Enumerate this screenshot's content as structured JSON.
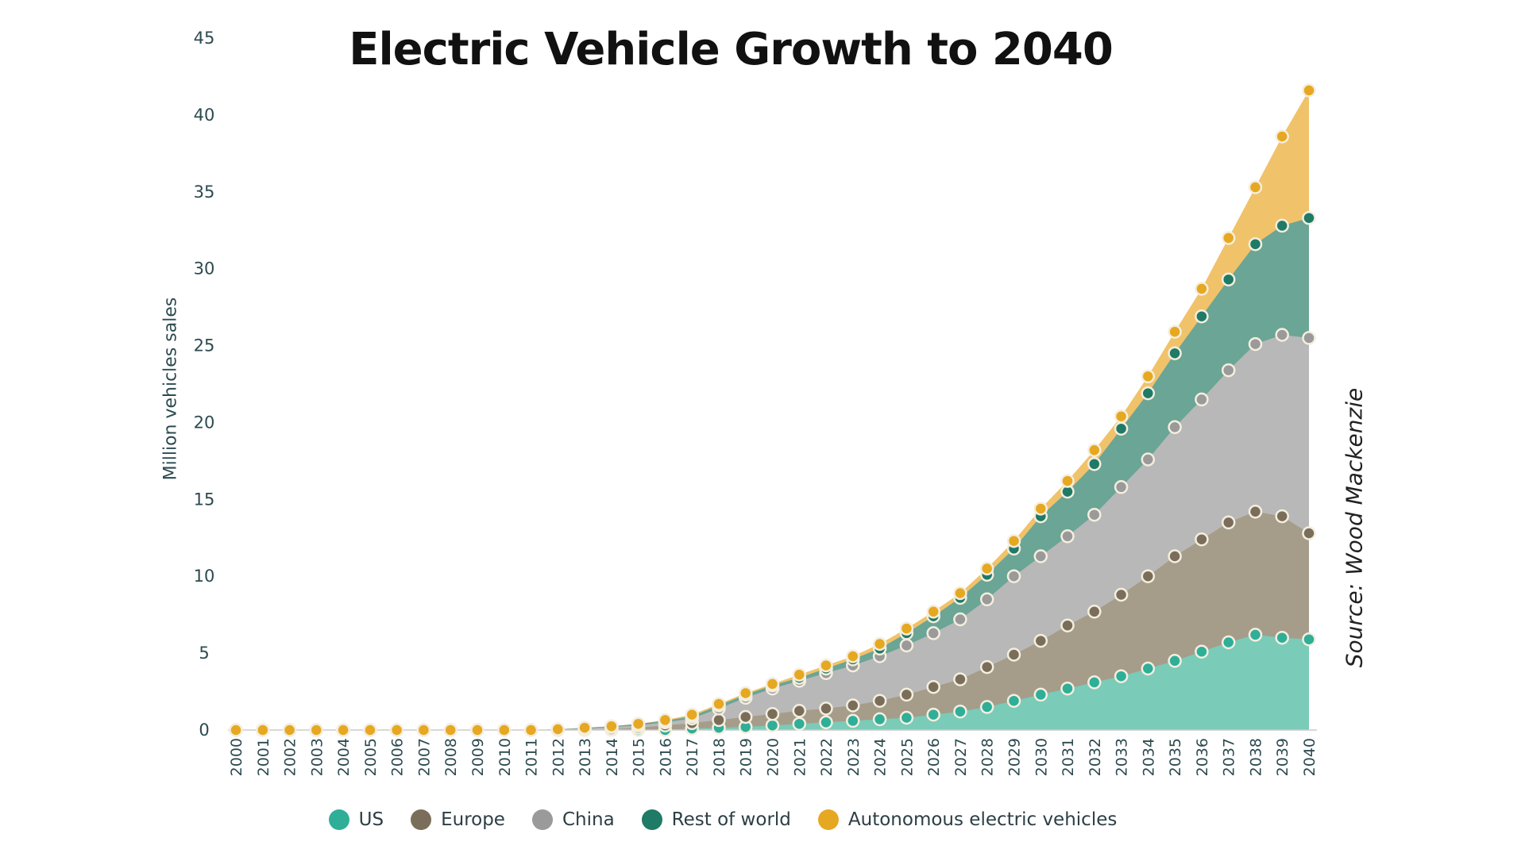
{
  "chart_data": {
    "type": "area",
    "stacked": true,
    "title": "Electric Vehicle Growth to 2040",
    "ylabel": "Million vehicles sales",
    "xlabel": "",
    "ylim": [
      0,
      45
    ],
    "yticks": [
      "0",
      "5",
      "10",
      "15",
      "20",
      "25",
      "30",
      "35",
      "40",
      "45"
    ],
    "x": [
      "2000",
      "2001",
      "2002",
      "2003",
      "2004",
      "2005",
      "2006",
      "2007",
      "2008",
      "2009",
      "2010",
      "2011",
      "2012",
      "2013",
      "2014",
      "2015",
      "2016",
      "2017",
      "2018",
      "2019",
      "2020",
      "2021",
      "2022",
      "2023",
      "2024",
      "2025",
      "2026",
      "2027",
      "2028",
      "2029",
      "2030",
      "2031",
      "2032",
      "2033",
      "2034",
      "2035",
      "2036",
      "2037",
      "2038",
      "2039",
      "2040"
    ],
    "cumulative": true,
    "series": [
      {
        "name": "US",
        "color": "#2fae98",
        "area_color": "#7acbb8",
        "values": [
          0,
          0,
          0,
          0,
          0,
          0,
          0,
          0,
          0,
          0,
          0,
          0,
          0,
          0,
          0,
          0,
          0,
          0.1,
          0.15,
          0.2,
          0.3,
          0.4,
          0.5,
          0.6,
          0.7,
          0.8,
          1.0,
          1.2,
          1.5,
          1.9,
          2.3,
          2.7,
          3.1,
          3.5,
          4.0,
          4.5,
          5.1,
          5.7,
          6.2,
          6.0,
          5.9
        ]
      },
      {
        "name": "Europe",
        "color": "#7a6e5a",
        "area_color": "#a69c8a",
        "values": [
          0,
          0,
          0,
          0,
          0,
          0,
          0,
          0,
          0,
          0,
          0,
          0,
          0,
          0,
          0.05,
          0.15,
          0.3,
          0.45,
          0.65,
          0.85,
          1.05,
          1.25,
          1.4,
          1.6,
          1.9,
          2.3,
          2.8,
          3.3,
          4.1,
          4.9,
          5.8,
          6.8,
          7.7,
          8.8,
          10.0,
          11.3,
          12.4,
          13.5,
          14.2,
          13.9,
          12.8
        ]
      },
      {
        "name": "China",
        "color": "#9a9a9a",
        "area_color": "#b8b8b8",
        "values": [
          0,
          0,
          0,
          0,
          0,
          0,
          0,
          0,
          0,
          0,
          0,
          0,
          0.05,
          0.1,
          0.2,
          0.3,
          0.5,
          0.75,
          1.4,
          2.1,
          2.7,
          3.2,
          3.7,
          4.2,
          4.8,
          5.5,
          6.3,
          7.2,
          8.5,
          10.0,
          11.3,
          12.6,
          14.0,
          15.8,
          17.6,
          19.7,
          21.5,
          23.4,
          25.1,
          25.7,
          25.5
        ]
      },
      {
        "name": "Rest of world",
        "color": "#1f7a66",
        "area_color": "#6aa595",
        "values": [
          0,
          0,
          0,
          0,
          0,
          0,
          0,
          0,
          0,
          0,
          0,
          0,
          0.05,
          0.15,
          0.25,
          0.4,
          0.6,
          0.9,
          1.6,
          2.3,
          2.9,
          3.4,
          4.0,
          4.6,
          5.3,
          6.3,
          7.4,
          8.6,
          10.1,
          11.8,
          13.9,
          15.5,
          17.3,
          19.6,
          21.9,
          24.5,
          26.9,
          29.3,
          31.6,
          32.8,
          33.3
        ]
      },
      {
        "name": "Autonomous electric vehicles",
        "color": "#e6a821",
        "area_color": "#f0c26a",
        "values": [
          0,
          0,
          0,
          0,
          0,
          0,
          0,
          0,
          0,
          0,
          0,
          0,
          0.05,
          0.15,
          0.25,
          0.4,
          0.65,
          1.0,
          1.7,
          2.4,
          3.0,
          3.6,
          4.2,
          4.8,
          5.6,
          6.6,
          7.7,
          8.9,
          10.5,
          12.3,
          14.4,
          16.2,
          18.2,
          20.4,
          23.0,
          25.9,
          28.7,
          32.0,
          35.3,
          38.6,
          41.6
        ]
      }
    ],
    "legend_position": "bottom",
    "grid": false,
    "annotation": {
      "label": "Source:",
      "value": "Wood Mackenzie"
    }
  }
}
